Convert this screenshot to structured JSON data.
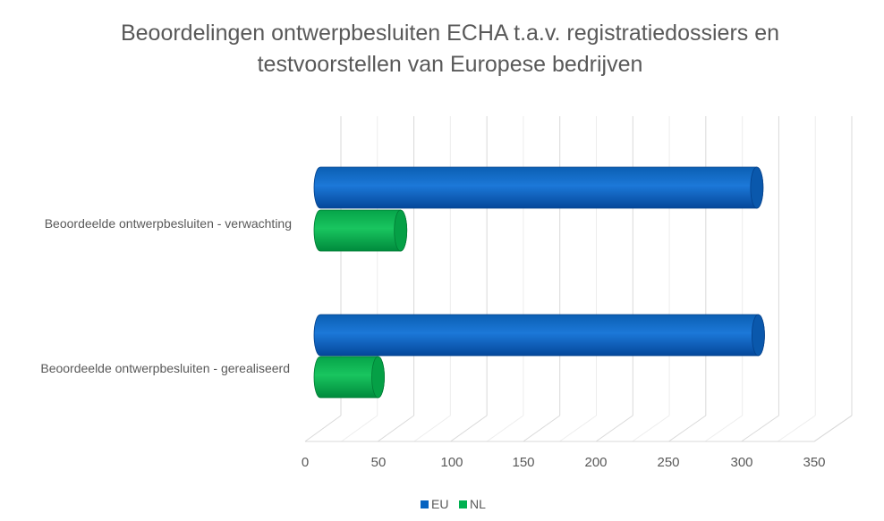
{
  "chart_data": {
    "type": "bar",
    "orientation": "horizontal",
    "three_d": true,
    "title_lines": [
      "Beoordelingen ontwerpbesluiten ECHA t.a.v. registratiedossiers en",
      "testvoorstellen van Europese bedrijven"
    ],
    "categories": [
      "Beoordeelde ontwerpbesluiten - verwachting",
      "Beoordeelde ontwerpbesluiten - gerealiseerd"
    ],
    "series": [
      {
        "name": "EU",
        "color": "#0563C1",
        "values": [
          310,
          311
        ]
      },
      {
        "name": "NL",
        "color": "#00B050",
        "values": [
          57,
          41
        ]
      }
    ],
    "xlim": [
      0,
      350
    ],
    "ticks": [
      "0",
      "50",
      "100",
      "150",
      "200",
      "250",
      "300",
      "350"
    ],
    "tick_values": [
      0,
      50,
      100,
      150,
      200,
      250,
      300,
      350
    ],
    "grid": true,
    "legend_position": "bottom"
  }
}
